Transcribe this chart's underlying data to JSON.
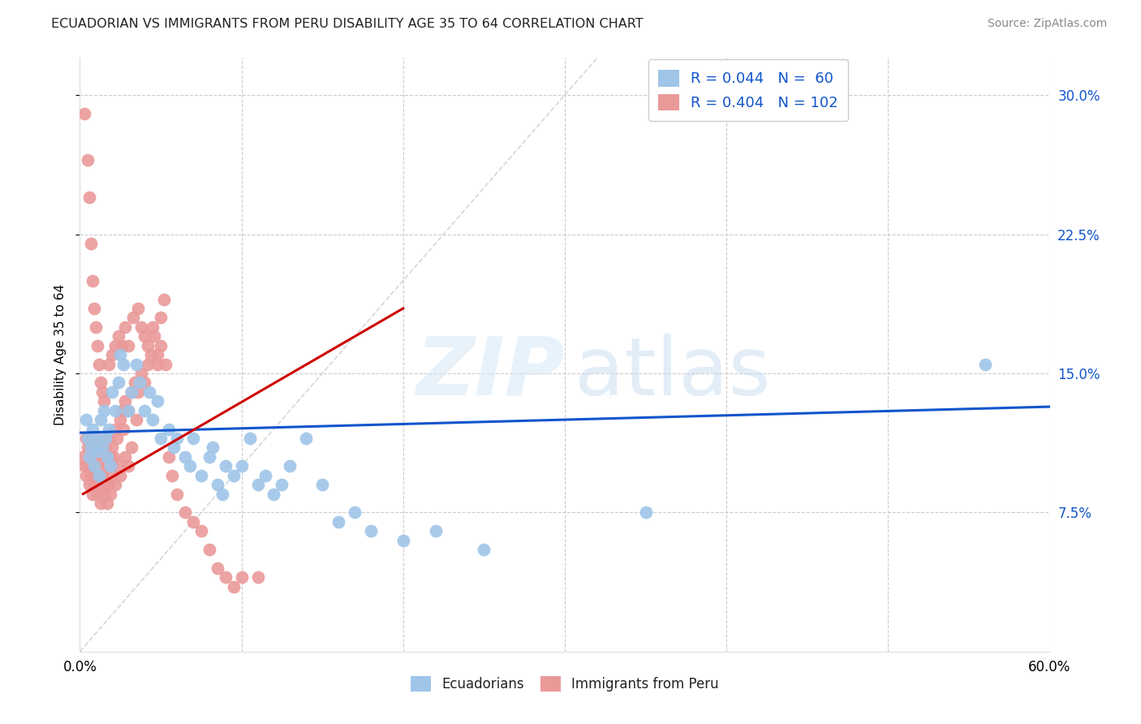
{
  "title": "ECUADORIAN VS IMMIGRANTS FROM PERU DISABILITY AGE 35 TO 64 CORRELATION CHART",
  "source": "Source: ZipAtlas.com",
  "ylabel": "Disability Age 35 to 64",
  "xlim": [
    0.0,
    0.6
  ],
  "ylim": [
    0.0,
    0.32
  ],
  "xtick_positions": [
    0.0,
    0.1,
    0.2,
    0.3,
    0.4,
    0.5,
    0.6
  ],
  "xticklabels": [
    "0.0%",
    "",
    "",
    "",
    "",
    "",
    "60.0%"
  ],
  "yticks_right": [
    0.075,
    0.15,
    0.225,
    0.3
  ],
  "ytick_labels_right": [
    "7.5%",
    "15.0%",
    "22.5%",
    "30.0%"
  ],
  "legend_R1": "R = 0.044",
  "legend_N1": "N =  60",
  "legend_R2": "R = 0.404",
  "legend_N2": "N = 102",
  "color_blue": "#9fc5e8",
  "color_pink": "#ea9999",
  "color_blue_line": "#1155cc",
  "color_pink_line": "#cc0000",
  "color_diag_line": "#cccccc",
  "watermark_zip": "ZIP",
  "watermark_atlas": "atlas",
  "legend_labels": [
    "Ecuadorians",
    "Immigrants from Peru"
  ],
  "blue_points": [
    [
      0.004,
      0.125
    ],
    [
      0.005,
      0.115
    ],
    [
      0.006,
      0.105
    ],
    [
      0.007,
      0.11
    ],
    [
      0.008,
      0.12
    ],
    [
      0.009,
      0.1
    ],
    [
      0.01,
      0.115
    ],
    [
      0.011,
      0.108
    ],
    [
      0.012,
      0.095
    ],
    [
      0.013,
      0.125
    ],
    [
      0.014,
      0.11
    ],
    [
      0.015,
      0.13
    ],
    [
      0.016,
      0.115
    ],
    [
      0.017,
      0.105
    ],
    [
      0.018,
      0.12
    ],
    [
      0.019,
      0.1
    ],
    [
      0.02,
      0.14
    ],
    [
      0.022,
      0.13
    ],
    [
      0.024,
      0.145
    ],
    [
      0.025,
      0.16
    ],
    [
      0.027,
      0.155
    ],
    [
      0.03,
      0.13
    ],
    [
      0.032,
      0.14
    ],
    [
      0.035,
      0.155
    ],
    [
      0.037,
      0.145
    ],
    [
      0.04,
      0.13
    ],
    [
      0.043,
      0.14
    ],
    [
      0.045,
      0.125
    ],
    [
      0.048,
      0.135
    ],
    [
      0.05,
      0.115
    ],
    [
      0.055,
      0.12
    ],
    [
      0.058,
      0.11
    ],
    [
      0.06,
      0.115
    ],
    [
      0.065,
      0.105
    ],
    [
      0.068,
      0.1
    ],
    [
      0.07,
      0.115
    ],
    [
      0.075,
      0.095
    ],
    [
      0.08,
      0.105
    ],
    [
      0.082,
      0.11
    ],
    [
      0.085,
      0.09
    ],
    [
      0.088,
      0.085
    ],
    [
      0.09,
      0.1
    ],
    [
      0.095,
      0.095
    ],
    [
      0.1,
      0.1
    ],
    [
      0.105,
      0.115
    ],
    [
      0.11,
      0.09
    ],
    [
      0.115,
      0.095
    ],
    [
      0.12,
      0.085
    ],
    [
      0.125,
      0.09
    ],
    [
      0.13,
      0.1
    ],
    [
      0.14,
      0.115
    ],
    [
      0.15,
      0.09
    ],
    [
      0.16,
      0.07
    ],
    [
      0.17,
      0.075
    ],
    [
      0.18,
      0.065
    ],
    [
      0.2,
      0.06
    ],
    [
      0.22,
      0.065
    ],
    [
      0.25,
      0.055
    ],
    [
      0.35,
      0.075
    ],
    [
      0.56,
      0.155
    ]
  ],
  "pink_points": [
    [
      0.002,
      0.105
    ],
    [
      0.003,
      0.1
    ],
    [
      0.004,
      0.115
    ],
    [
      0.004,
      0.095
    ],
    [
      0.005,
      0.11
    ],
    [
      0.005,
      0.1
    ],
    [
      0.006,
      0.105
    ],
    [
      0.006,
      0.09
    ],
    [
      0.007,
      0.115
    ],
    [
      0.007,
      0.095
    ],
    [
      0.008,
      0.1
    ],
    [
      0.008,
      0.085
    ],
    [
      0.009,
      0.11
    ],
    [
      0.009,
      0.09
    ],
    [
      0.01,
      0.105
    ],
    [
      0.01,
      0.095
    ],
    [
      0.011,
      0.115
    ],
    [
      0.011,
      0.085
    ],
    [
      0.012,
      0.1
    ],
    [
      0.012,
      0.09
    ],
    [
      0.013,
      0.105
    ],
    [
      0.013,
      0.08
    ],
    [
      0.014,
      0.11
    ],
    [
      0.014,
      0.095
    ],
    [
      0.015,
      0.105
    ],
    [
      0.015,
      0.085
    ],
    [
      0.016,
      0.11
    ],
    [
      0.016,
      0.09
    ],
    [
      0.017,
      0.1
    ],
    [
      0.017,
      0.08
    ],
    [
      0.018,
      0.115
    ],
    [
      0.018,
      0.09
    ],
    [
      0.019,
      0.105
    ],
    [
      0.019,
      0.085
    ],
    [
      0.02,
      0.11
    ],
    [
      0.02,
      0.095
    ],
    [
      0.021,
      0.105
    ],
    [
      0.022,
      0.12
    ],
    [
      0.022,
      0.09
    ],
    [
      0.023,
      0.115
    ],
    [
      0.024,
      0.1
    ],
    [
      0.025,
      0.125
    ],
    [
      0.025,
      0.095
    ],
    [
      0.026,
      0.13
    ],
    [
      0.027,
      0.12
    ],
    [
      0.028,
      0.135
    ],
    [
      0.028,
      0.105
    ],
    [
      0.03,
      0.13
    ],
    [
      0.03,
      0.1
    ],
    [
      0.032,
      0.14
    ],
    [
      0.032,
      0.11
    ],
    [
      0.034,
      0.145
    ],
    [
      0.035,
      0.125
    ],
    [
      0.036,
      0.14
    ],
    [
      0.038,
      0.15
    ],
    [
      0.04,
      0.145
    ],
    [
      0.042,
      0.155
    ],
    [
      0.044,
      0.16
    ],
    [
      0.046,
      0.17
    ],
    [
      0.048,
      0.155
    ],
    [
      0.05,
      0.18
    ],
    [
      0.052,
      0.19
    ],
    [
      0.003,
      0.29
    ],
    [
      0.005,
      0.265
    ],
    [
      0.006,
      0.245
    ],
    [
      0.007,
      0.22
    ],
    [
      0.008,
      0.2
    ],
    [
      0.009,
      0.185
    ],
    [
      0.01,
      0.175
    ],
    [
      0.011,
      0.165
    ],
    [
      0.012,
      0.155
    ],
    [
      0.013,
      0.145
    ],
    [
      0.014,
      0.14
    ],
    [
      0.015,
      0.135
    ],
    [
      0.018,
      0.155
    ],
    [
      0.02,
      0.16
    ],
    [
      0.022,
      0.165
    ],
    [
      0.024,
      0.17
    ],
    [
      0.026,
      0.165
    ],
    [
      0.028,
      0.175
    ],
    [
      0.03,
      0.165
    ],
    [
      0.033,
      0.18
    ],
    [
      0.036,
      0.185
    ],
    [
      0.038,
      0.175
    ],
    [
      0.04,
      0.17
    ],
    [
      0.042,
      0.165
    ],
    [
      0.045,
      0.175
    ],
    [
      0.048,
      0.16
    ],
    [
      0.05,
      0.165
    ],
    [
      0.053,
      0.155
    ],
    [
      0.055,
      0.105
    ],
    [
      0.057,
      0.095
    ],
    [
      0.06,
      0.085
    ],
    [
      0.065,
      0.075
    ],
    [
      0.07,
      0.07
    ],
    [
      0.075,
      0.065
    ],
    [
      0.08,
      0.055
    ],
    [
      0.085,
      0.045
    ],
    [
      0.09,
      0.04
    ],
    [
      0.095,
      0.035
    ],
    [
      0.1,
      0.04
    ],
    [
      0.11,
      0.04
    ]
  ],
  "blue_line": {
    "x_start": 0.0,
    "x_end": 0.6,
    "y_start": 0.118,
    "y_end": 0.132
  },
  "pink_line": {
    "x_start": 0.002,
    "x_end": 0.2,
    "y_start": 0.085,
    "y_end": 0.185
  }
}
